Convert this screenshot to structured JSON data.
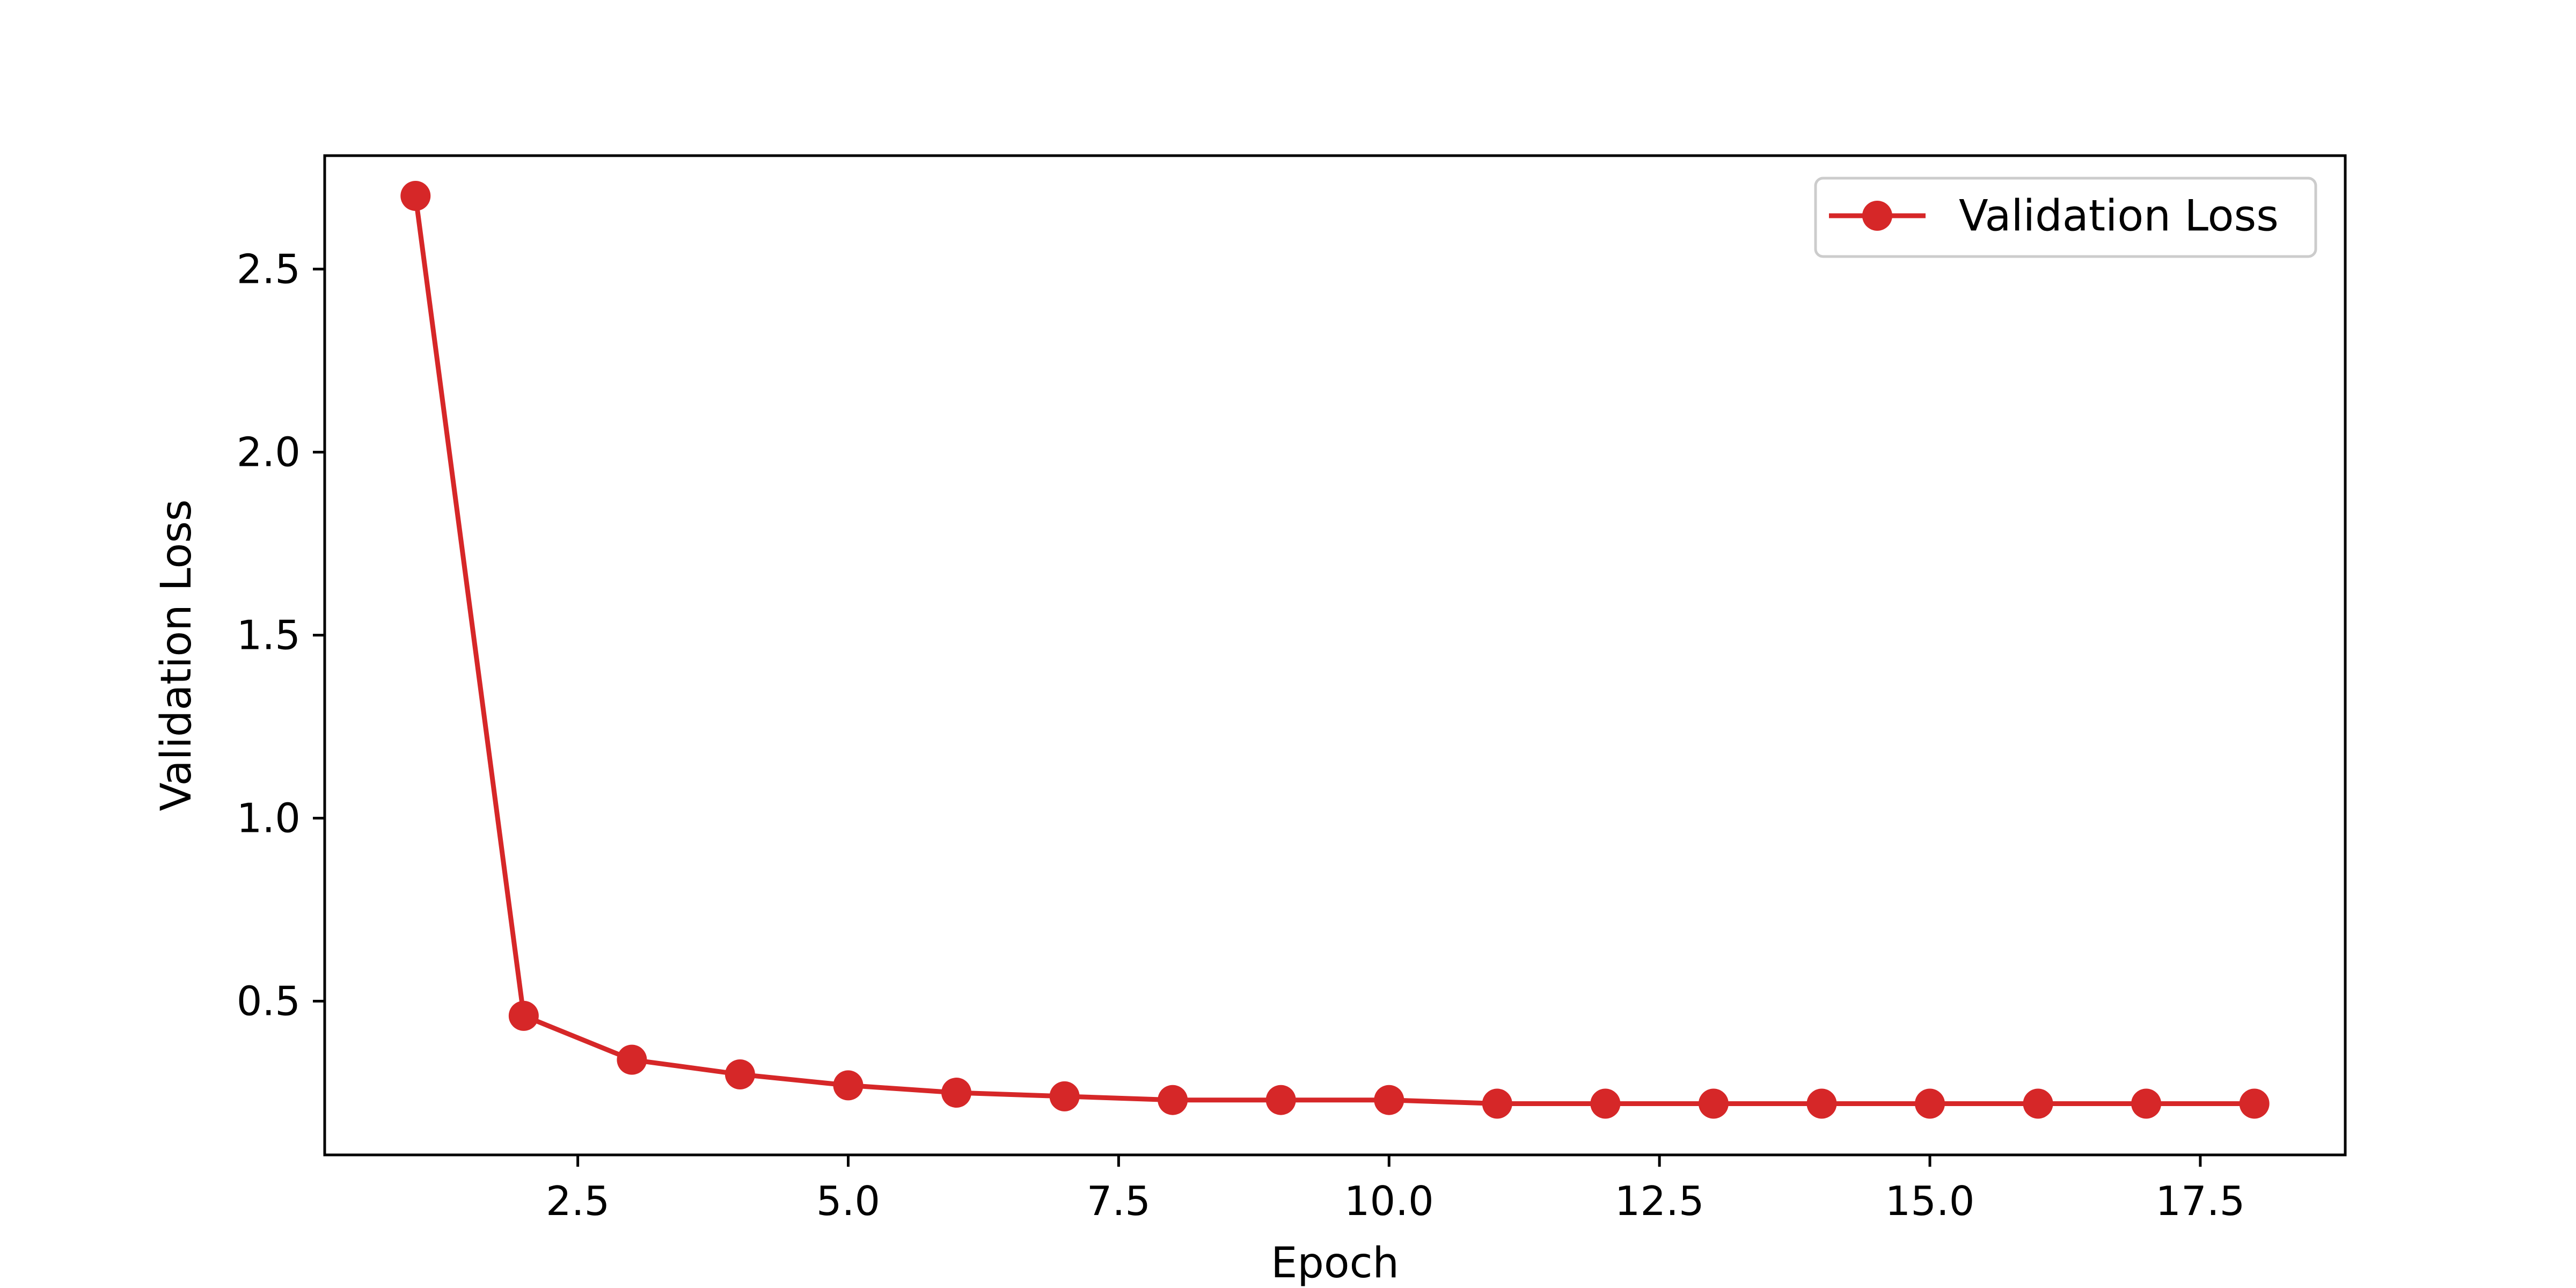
{
  "chart_data": {
    "type": "line",
    "title": "",
    "xlabel": "Epoch",
    "ylabel": "Validation Loss",
    "xlim": [
      0.16,
      18.84
    ],
    "ylim": [
      0.08,
      2.81
    ],
    "x_ticks": [
      2.5,
      5.0,
      7.5,
      10.0,
      12.5,
      15.0,
      17.5
    ],
    "x_tick_labels": [
      "2.5",
      "5.0",
      "7.5",
      "10.0",
      "12.5",
      "15.0",
      "17.5"
    ],
    "y_ticks": [
      0.5,
      1.0,
      1.5,
      2.0,
      2.5
    ],
    "y_tick_labels": [
      "0.5",
      "1.0",
      "1.5",
      "2.0",
      "2.5"
    ],
    "grid": false,
    "legend_position": "top-right",
    "series": [
      {
        "name": "Validation Loss",
        "color": "#d62728",
        "marker": "circle",
        "x": [
          1,
          2,
          3,
          4,
          5,
          6,
          7,
          8,
          9,
          10,
          11,
          12,
          13,
          14,
          15,
          16,
          17,
          18
        ],
        "y": [
          2.7,
          0.46,
          0.34,
          0.3,
          0.27,
          0.25,
          0.24,
          0.23,
          0.23,
          0.23,
          0.22,
          0.22,
          0.22,
          0.22,
          0.22,
          0.22,
          0.22,
          0.22
        ]
      }
    ]
  }
}
